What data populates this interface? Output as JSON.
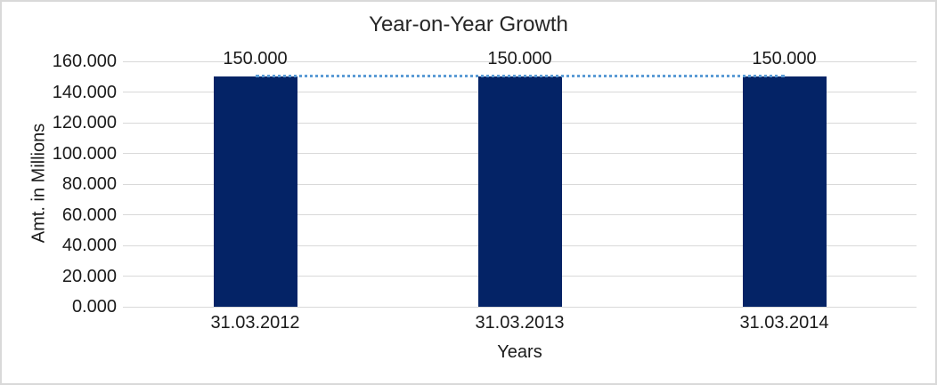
{
  "chart_data": {
    "type": "bar",
    "title": "Year-on-Year Growth",
    "categories": [
      "31.03.2012",
      "31.03.2013",
      "31.03.2014"
    ],
    "series": [
      {
        "name": "amount",
        "type": "bar",
        "values": [
          150,
          150,
          150
        ]
      },
      {
        "name": "trend",
        "type": "line",
        "line_style": "dotted",
        "values": [
          150,
          150,
          150
        ]
      }
    ],
    "data_labels": [
      "150.000",
      "150.000",
      "150.000"
    ],
    "xlabel": "Years",
    "ylabel": "Amt. in Millions",
    "ylim": [
      0,
      160
    ],
    "ytick_step": 20,
    "yticks": [
      "0.000",
      "20.000",
      "40.000",
      "60.000",
      "80.000",
      "100.000",
      "120.000",
      "140.000",
      "160.000"
    ],
    "grid": true,
    "legend": "none"
  },
  "colors": {
    "bar": "#042366",
    "trend_line": "#5b9bd5",
    "gridline": "#d9d9d9",
    "chart_border": "#d9d9d9",
    "title_text": "#262626",
    "label_text": "#1a1a1a"
  }
}
